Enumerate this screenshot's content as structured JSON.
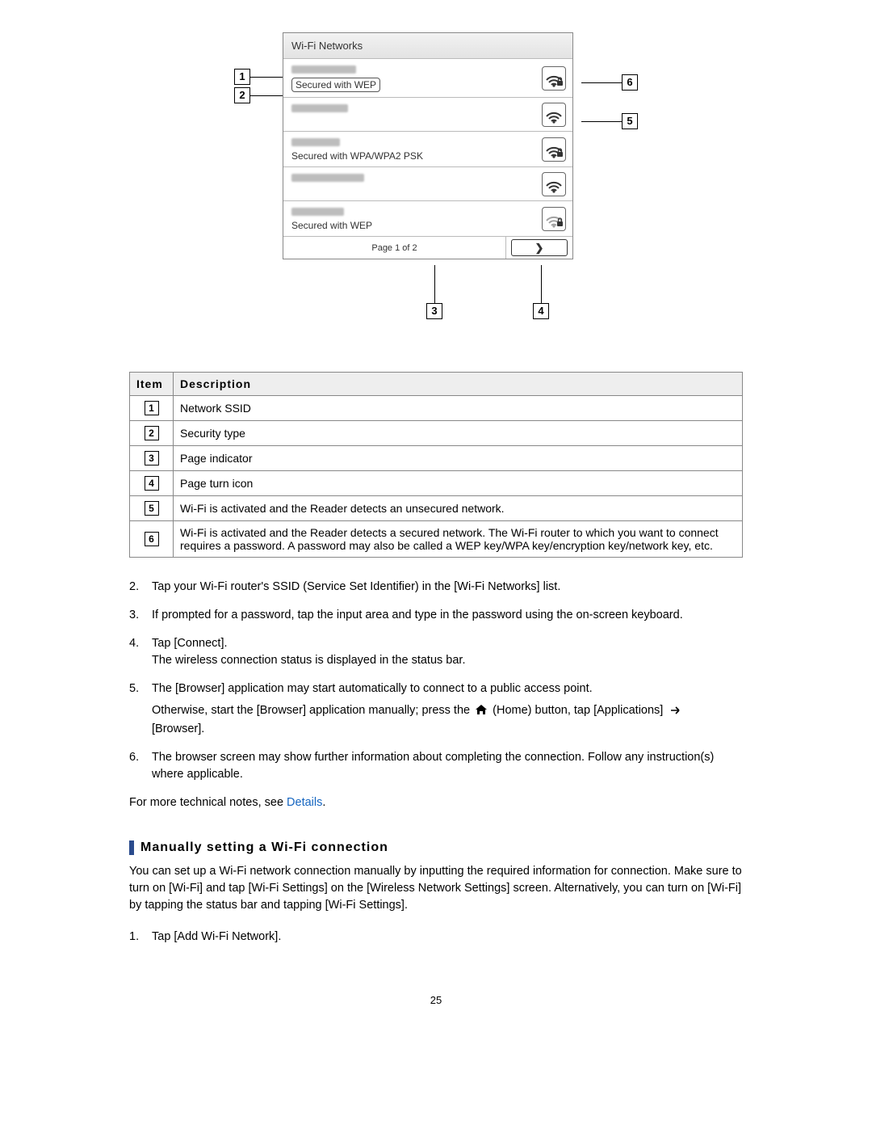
{
  "diagram": {
    "header": "Wi-Fi Networks",
    "rows": [
      {
        "ssid_blur_width": 80,
        "security": "Secured with WEP",
        "security_boxed": true,
        "locked": true,
        "strong": true
      },
      {
        "ssid_blur_width": 70,
        "security": "",
        "security_boxed": false,
        "locked": false,
        "strong": true
      },
      {
        "ssid_blur_width": 60,
        "security": "Secured with WPA/WPA2 PSK",
        "security_boxed": false,
        "locked": true,
        "strong": true
      },
      {
        "ssid_blur_width": 90,
        "security": "",
        "security_boxed": false,
        "locked": false,
        "strong": true
      },
      {
        "ssid_blur_width": 65,
        "security": "Secured with WEP",
        "security_boxed": false,
        "locked": true,
        "strong": false
      }
    ],
    "page_indicator": "Page 1 of 2",
    "page_turn_glyph": "❯",
    "callouts": {
      "c1": "1",
      "c2": "2",
      "c3": "3",
      "c4": "4",
      "c5": "5",
      "c6": "6"
    }
  },
  "table": {
    "head_item": "Item",
    "head_desc": "Description",
    "rows": [
      {
        "n": "1",
        "d": "Network SSID"
      },
      {
        "n": "2",
        "d": "Security type"
      },
      {
        "n": "3",
        "d": "Page indicator"
      },
      {
        "n": "4",
        "d": "Page turn icon"
      },
      {
        "n": "5",
        "d": "Wi-Fi is activated and the Reader detects an unsecured network."
      },
      {
        "n": "6",
        "d": "Wi-Fi is activated and the Reader detects a secured network. The Wi-Fi router to which you want to connect requires a password. A password may also be called a WEP key/WPA key/encryption key/network key, etc."
      }
    ]
  },
  "steps_a": [
    {
      "n": "2.",
      "t": "Tap your Wi-Fi router's SSID (Service Set Identifier) in the [Wi-Fi Networks] list."
    },
    {
      "n": "3.",
      "t": "If prompted for a password, tap the input area and type in the password using the on-screen keyboard."
    },
    {
      "n": "4.",
      "t": "Tap [Connect].",
      "t2": "The wireless connection status is displayed in the status bar."
    },
    {
      "n": "5.",
      "t_pre": "The [Browser] application may start automatically to connect to a public access point.",
      "t_mid_a": "Otherwise, start the [Browser] application manually; press the ",
      "t_mid_b": " (Home) button, tap [Applications] ",
      "t_mid_c": " [Browser]."
    },
    {
      "n": "6.",
      "t": "The browser screen may show further information about completing the connection. Follow any instruction(s) where applicable."
    }
  ],
  "tech_notes_prefix": "For more technical notes, see ",
  "tech_notes_link": "Details",
  "tech_notes_suffix": ".",
  "section_header": "Manually setting a Wi-Fi connection",
  "section_intro": "You can set up a Wi-Fi network connection manually by inputting the required information for connection. Make sure to turn on [Wi-Fi] and tap [Wi-Fi Settings] on the [Wireless Network Settings] screen. Alternatively, you can turn on [Wi-Fi] by tapping the status bar and tapping [Wi-Fi Settings].",
  "steps_b": [
    {
      "n": "1.",
      "t": "Tap [Add Wi-Fi Network]."
    }
  ],
  "page_number": "25",
  "colors": {
    "accent": "#2a4b8d",
    "link": "#1565c0"
  }
}
